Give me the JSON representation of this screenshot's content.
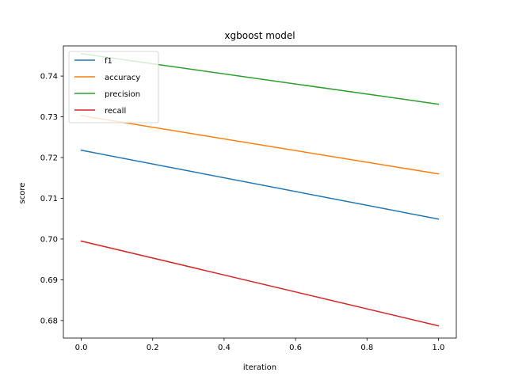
{
  "chart_data": {
    "type": "line",
    "title": "xgboost model",
    "xlabel": "iteration",
    "ylabel": "score",
    "x": [
      0.0,
      1.0
    ],
    "xlim": [
      -0.05,
      1.05
    ],
    "ylim": [
      0.6757,
      0.7474
    ],
    "xticks": [
      0.0,
      0.2,
      0.4,
      0.6,
      0.8,
      1.0
    ],
    "xtick_labels": [
      "0.0",
      "0.2",
      "0.4",
      "0.6",
      "0.8",
      "1.0"
    ],
    "yticks": [
      0.68,
      0.69,
      0.7,
      0.71,
      0.72,
      0.73,
      0.74
    ],
    "ytick_labels": [
      "0.68",
      "0.69",
      "0.70",
      "0.71",
      "0.72",
      "0.73",
      "0.74"
    ],
    "grid": false,
    "legend_position": "top-left",
    "series": [
      {
        "name": "f1",
        "color": "#1f77b4",
        "values": [
          0.7218,
          0.7049
        ]
      },
      {
        "name": "accuracy",
        "color": "#ff7f0e",
        "values": [
          0.7303,
          0.716
        ]
      },
      {
        "name": "precision",
        "color": "#2ca02c",
        "values": [
          0.7455,
          0.7331
        ]
      },
      {
        "name": "recall",
        "color": "#d62728",
        "values": [
          0.6995,
          0.6787
        ]
      }
    ]
  }
}
